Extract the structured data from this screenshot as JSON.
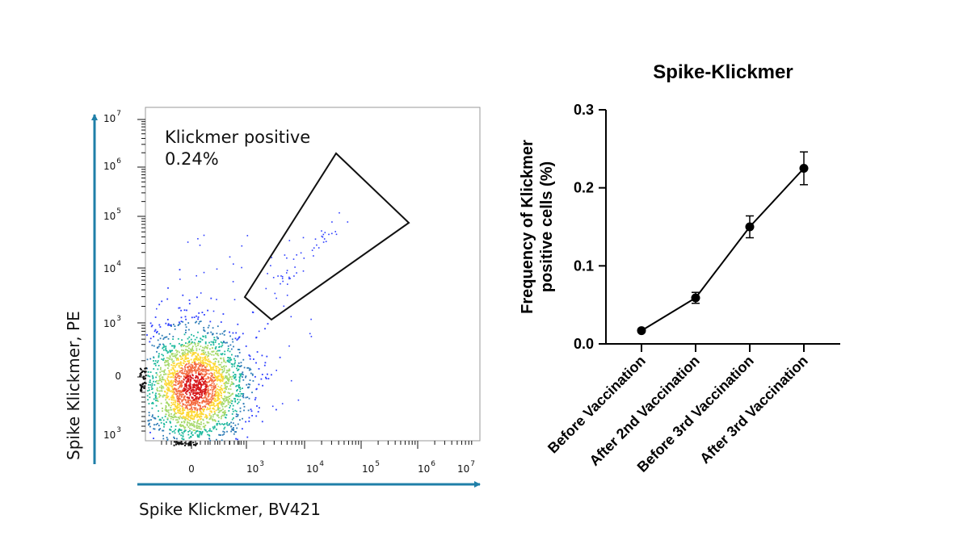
{
  "chart_data": [
    {
      "type": "scatter",
      "xlabel": "Spike Klickmer, BV421",
      "ylabel": "Spike Klickmer, PE",
      "x_ticks": [
        {
          "base": "0",
          "exp": ""
        },
        {
          "base": "10",
          "exp": "3"
        },
        {
          "base": "10",
          "exp": "4"
        },
        {
          "base": "10",
          "exp": "5"
        },
        {
          "base": "10",
          "exp": "6"
        },
        {
          "base": "10",
          "exp": "7"
        }
      ],
      "y_ticks": [
        {
          "base": "10",
          "exp": "3"
        },
        {
          "base": "0",
          "exp": ""
        },
        {
          "base": "10",
          "exp": "3"
        },
        {
          "base": "10",
          "exp": "4"
        },
        {
          "base": "10",
          "exp": "5"
        },
        {
          "base": "10",
          "exp": "6"
        },
        {
          "base": "10",
          "exp": "7"
        }
      ],
      "scale": "biexponential",
      "gate": {
        "label_line1": "Klickmer positive",
        "label_line2": "0.24%",
        "percent": 0.24
      },
      "colors": {
        "axis_arrow": "#1f7fa8",
        "gate": "#111111",
        "density_high": "#d7191c",
        "density_low": "#2b3cff"
      }
    },
    {
      "type": "line",
      "title": "Spike-Klickmer",
      "ylabel_line1": "Frequency of Klickmer",
      "ylabel_line2": "positive cells (%)",
      "categories": [
        "Before Vaccination",
        "After 2nd Vaccination",
        "Before 3rd Vaccination",
        "After 3rd Vaccination"
      ],
      "values": [
        0.017,
        0.059,
        0.15,
        0.225
      ],
      "errors": [
        0.002,
        0.007,
        0.014,
        0.021
      ],
      "ylim": [
        0.0,
        0.3
      ],
      "y_ticks": [
        "0.0",
        "0.1",
        "0.2",
        "0.3"
      ],
      "color": "#000000"
    }
  ]
}
